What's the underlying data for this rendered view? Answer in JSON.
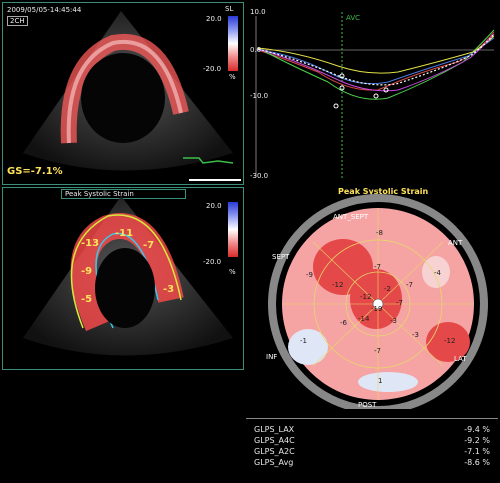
{
  "top_echo": {
    "timestamp": "2009/05/05-14:45:44",
    "view": "2CH",
    "unit_label": "SL",
    "scale_max": "20.0",
    "scale_min": "-20.0",
    "percent": "%",
    "gs": "GS=-7.1%"
  },
  "bottom_echo": {
    "title": "Peak Systolic Strain",
    "scale_max": "20.0",
    "scale_min": "-20.0",
    "percent": "%",
    "segments": [
      "-13",
      "-11",
      "-7",
      "-9",
      "-5",
      "-3"
    ]
  },
  "curves": {
    "y_top": "10.0",
    "y_mid": "0.0",
    "y_lower": "-10.0",
    "y_bottom": "-30.0",
    "marker": "AVC"
  },
  "bullseye": {
    "title": "Peak Systolic Strain",
    "labels": {
      "ant_sept": "ANT_SEPT",
      "ant": "ANT",
      "sept": "SEPT",
      "lat": "LAT",
      "inf": "INF",
      "post": "POST"
    },
    "values": [
      "-8",
      "-4",
      "-9",
      "-7",
      "-7",
      "-12",
      "-12",
      "-2",
      "-7",
      "-19",
      "-3",
      "-14",
      "-6",
      "-3",
      "-1",
      "-7",
      "-12",
      "1"
    ]
  },
  "table": {
    "rows": [
      {
        "label": "GLPS_LAX",
        "value": "-9.4 %"
      },
      {
        "label": "GLPS_A4C",
        "value": "-9.2 %"
      },
      {
        "label": "GLPS_A2C",
        "value": "-7.1 %"
      },
      {
        "label": "GLPS_Avg",
        "value": "-8.6 %"
      }
    ]
  },
  "colors": {
    "accent": "#ffe35a",
    "frame": "#3a8f7a",
    "marker": "#3cbf4a"
  }
}
